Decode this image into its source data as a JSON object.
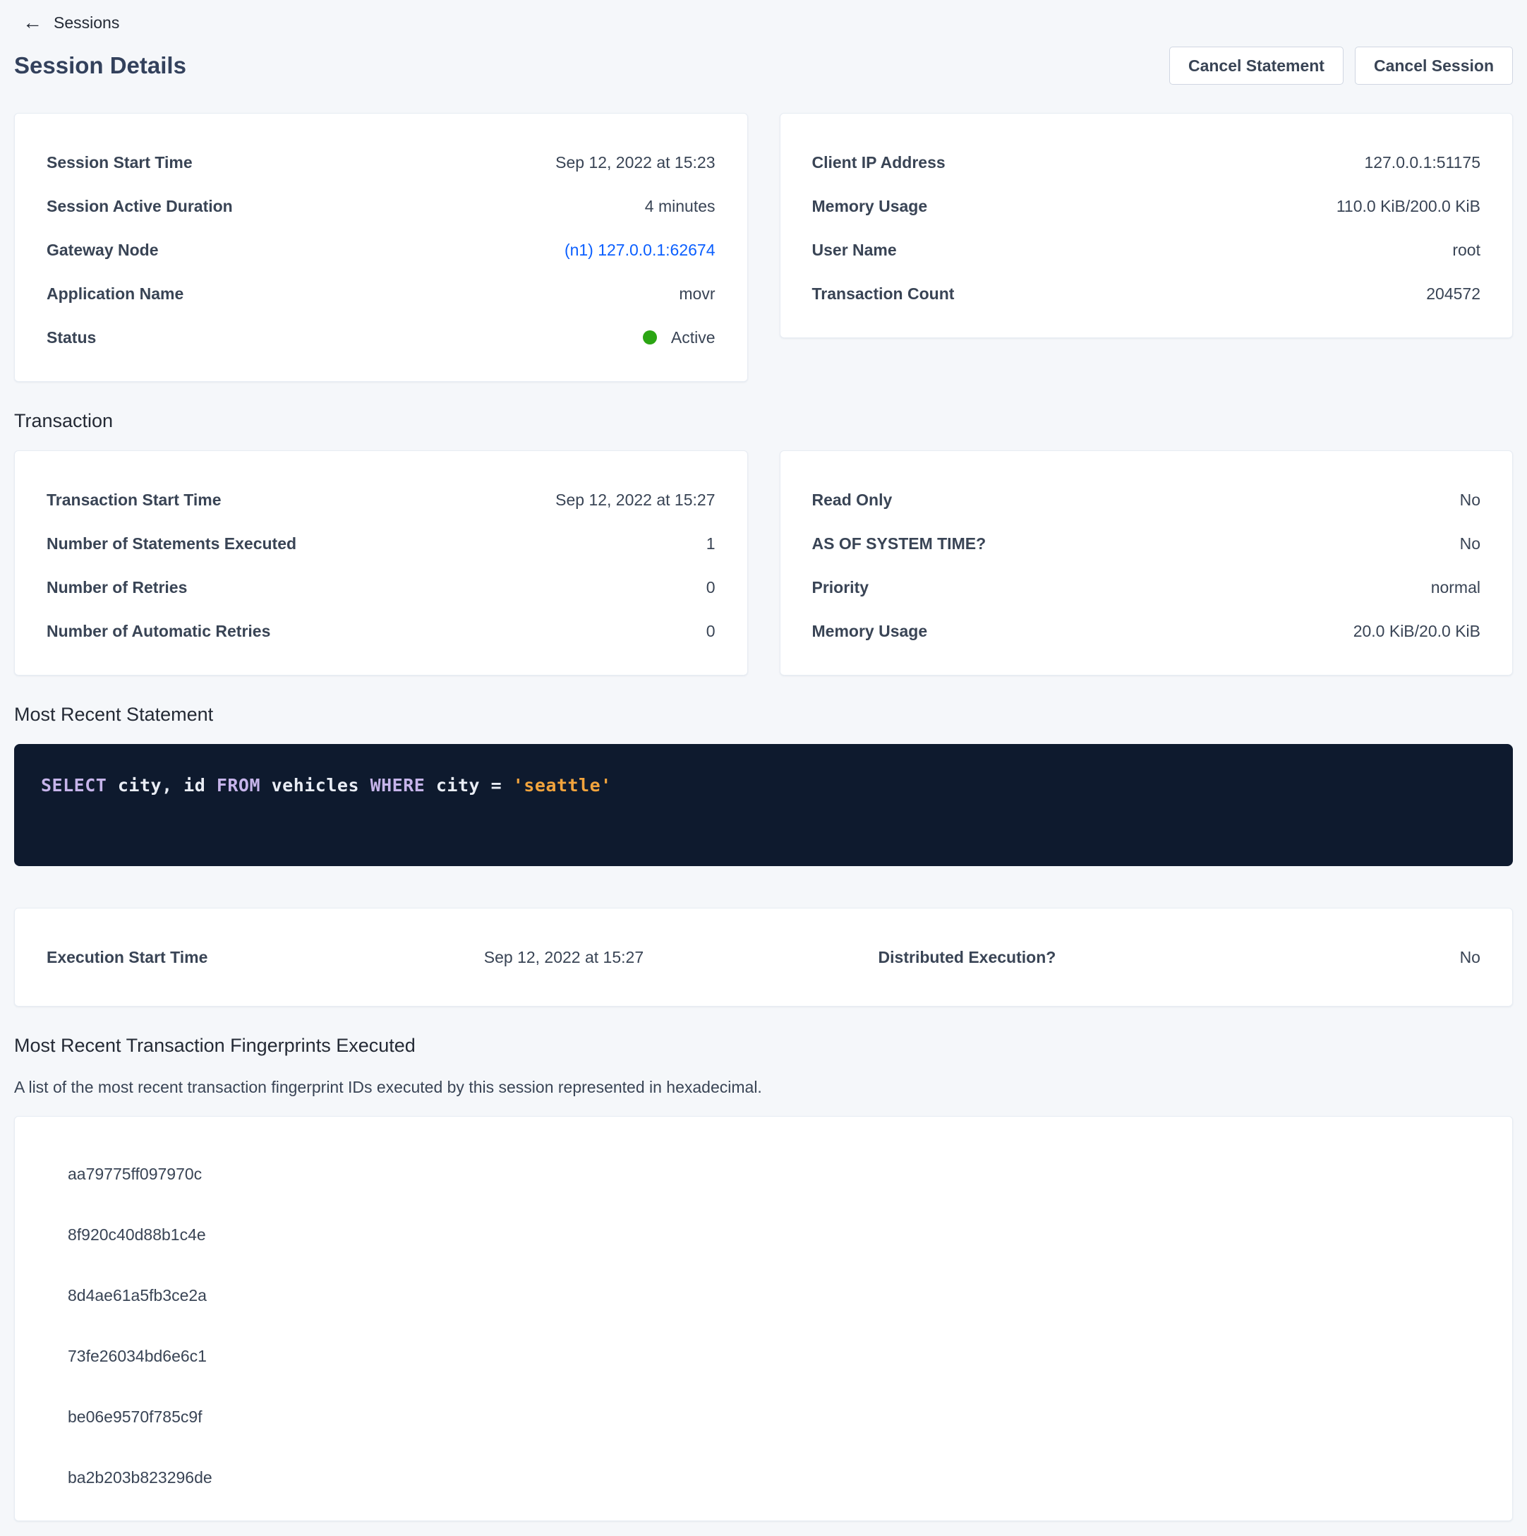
{
  "breadcrumb": {
    "label": "Sessions"
  },
  "page": {
    "title": "Session Details"
  },
  "actions": {
    "cancel_statement": "Cancel Statement",
    "cancel_session": "Cancel Session"
  },
  "session": {
    "left": {
      "session_start_time": {
        "label": "Session Start Time",
        "value": "Sep 12, 2022 at 15:23"
      },
      "session_active_duration": {
        "label": "Session Active Duration",
        "value": "4 minutes"
      },
      "gateway_node": {
        "label": "Gateway Node",
        "value": "(n1) 127.0.0.1:62674"
      },
      "application_name": {
        "label": "Application Name",
        "value": "movr"
      },
      "status": {
        "label": "Status",
        "value": "Active"
      }
    },
    "right": {
      "client_ip": {
        "label": "Client IP Address",
        "value": "127.0.0.1:51175"
      },
      "memory_usage": {
        "label": "Memory Usage",
        "value": "110.0 KiB/200.0 KiB"
      },
      "user_name": {
        "label": "User Name",
        "value": "root"
      },
      "transaction_count": {
        "label": "Transaction Count",
        "value": "204572"
      }
    }
  },
  "transaction": {
    "heading": "Transaction",
    "left": {
      "start_time": {
        "label": "Transaction Start Time",
        "value": "Sep 12, 2022 at 15:27"
      },
      "statements_executed": {
        "label": "Number of Statements Executed",
        "value": "1"
      },
      "retries": {
        "label": "Number of Retries",
        "value": "0"
      },
      "auto_retries": {
        "label": "Number of Automatic Retries",
        "value": "0"
      }
    },
    "right": {
      "read_only": {
        "label": "Read Only",
        "value": "No"
      },
      "aost": {
        "label": "AS OF SYSTEM TIME?",
        "value": "No"
      },
      "priority": {
        "label": "Priority",
        "value": "normal"
      },
      "memory_usage": {
        "label": "Memory Usage",
        "value": "20.0 KiB/20.0 KiB"
      }
    }
  },
  "statement": {
    "heading": "Most Recent Statement",
    "sql_tokens": {
      "kw1": "SELECT",
      "id1": " city, id ",
      "kw2": "FROM",
      "id2": " vehicles ",
      "kw3": "WHERE",
      "id3": " city = ",
      "str1": "'seattle'"
    },
    "execution": {
      "start_time_label": "Execution Start Time",
      "start_time_value": "Sep 12, 2022 at 15:27",
      "distributed_label": "Distributed Execution?",
      "distributed_value": "No"
    }
  },
  "fingerprints": {
    "heading": "Most Recent Transaction Fingerprints Executed",
    "description": "A list of the most recent transaction fingerprint IDs executed by this session represented in hexadecimal.",
    "items": [
      "aa79775ff097970c",
      "8f920c40d88b1c4e",
      "8d4ae61a5fb3ce2a",
      "73fe26034bd6e6c1",
      "be06e9570f785c9f",
      "ba2b203b823296de"
    ]
  },
  "colors": {
    "page_background": "#f5f7fa",
    "accent_link": "#0b5fff",
    "status_active_green": "#2ba513",
    "code_background": "#0e1a2e",
    "code_keyword": "#c6b4ea",
    "code_plain": "#e9edf5",
    "code_string": "#f2a43d"
  }
}
